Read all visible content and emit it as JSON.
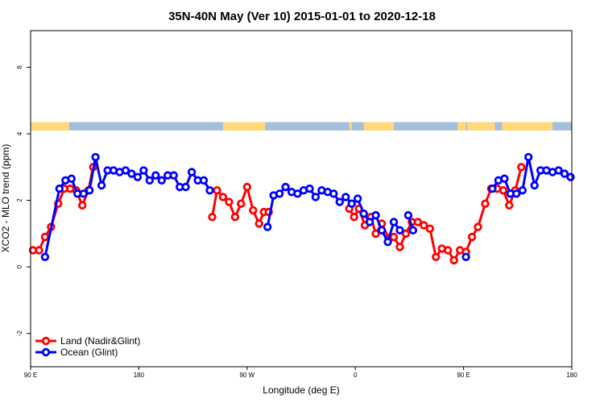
{
  "chart_data": {
    "type": "line",
    "title": "35N-40N May (Ver 10)   2015-01-01 to 2020-12-18",
    "xlabel": "Longitude (deg E)",
    "ylabel": "XCO2 - MLO trend (ppm)",
    "xlim": [
      90,
      540
    ],
    "ylim": [
      -3.0,
      7.1
    ],
    "x_ticks": [
      {
        "value": 90,
        "label": "90 E"
      },
      {
        "value": 180,
        "label": "180"
      },
      {
        "value": 270,
        "label": "90 W"
      },
      {
        "value": 360,
        "label": "0"
      },
      {
        "value": 450,
        "label": "90 E"
      },
      {
        "value": 540,
        "label": "180"
      }
    ],
    "y_ticks": [
      {
        "value": -2,
        "label": "-2"
      },
      {
        "value": 0,
        "label": "0"
      },
      {
        "value": 2,
        "label": "2"
      },
      {
        "value": 4,
        "label": "4"
      },
      {
        "value": 6,
        "label": "6"
      }
    ],
    "land_ocean_strip": {
      "y_range": [
        4.1,
        4.35
      ],
      "land_color": "#FFD97A",
      "ocean_color": "#A5BEDC",
      "land_segments": [
        [
          90,
          122
        ],
        [
          250,
          285
        ],
        [
          355,
          357
        ],
        [
          367,
          392
        ],
        [
          445,
          452
        ],
        [
          453,
          476
        ],
        [
          482,
          524
        ]
      ]
    },
    "series": [
      {
        "name": "Land (Nadir&Glint)",
        "color": "#FF0000",
        "segments": [
          [
            [
              92,
              0.5
            ],
            [
              97,
              0.5
            ],
            [
              102,
              0.9
            ],
            [
              107,
              1.2
            ],
            [
              113,
              1.9
            ],
            [
              118,
              2.35
            ],
            [
              123,
              2.35
            ],
            [
              128,
              2.3
            ],
            [
              133,
              1.85
            ],
            [
              138,
              2.3
            ],
            [
              142,
              3.0
            ]
          ],
          [
            [
              241,
              1.5
            ],
            [
              245,
              2.3
            ],
            [
              250,
              2.1
            ],
            [
              255,
              1.95
            ],
            [
              260,
              1.5
            ],
            [
              265,
              1.9
            ],
            [
              270,
              2.4
            ],
            [
              275,
              1.7
            ],
            [
              280,
              1.3
            ],
            [
              284,
              1.65
            ],
            [
              288,
              1.65
            ]
          ],
          [
            [
              355,
              1.75
            ],
            [
              359,
              1.5
            ],
            [
              363,
              1.75
            ],
            [
              368,
              1.25
            ],
            [
              373,
              1.5
            ],
            [
              377,
              1.0
            ],
            [
              382,
              1.3
            ],
            [
              388,
              0.85
            ],
            [
              392,
              0.9
            ],
            [
              397,
              0.6
            ],
            [
              402,
              1.0
            ],
            [
              407,
              1.35
            ],
            [
              412,
              1.35
            ],
            [
              417,
              1.25
            ],
            [
              422,
              1.15
            ],
            [
              427,
              0.3
            ],
            [
              432,
              0.55
            ],
            [
              437,
              0.5
            ],
            [
              442,
              0.2
            ],
            [
              447,
              0.5
            ],
            [
              452,
              0.45
            ],
            [
              457,
              0.9
            ],
            [
              462,
              1.2
            ],
            [
              468,
              1.9
            ],
            [
              473,
              2.35
            ],
            [
              478,
              2.35
            ],
            [
              483,
              2.3
            ],
            [
              488,
              1.85
            ],
            [
              493,
              2.3
            ],
            [
              498,
              3.0
            ]
          ]
        ]
      },
      {
        "name": "Ocean (Glint)",
        "color": "#0000FF",
        "segments": [
          [
            [
              102,
              0.3
            ],
            [
              114,
              2.35
            ],
            [
              119,
              2.6
            ],
            [
              124,
              2.65
            ],
            [
              129,
              2.2
            ],
            [
              134,
              2.2
            ],
            [
              139,
              2.3
            ],
            [
              144,
              3.3
            ],
            [
              149,
              2.45
            ],
            [
              154,
              2.9
            ],
            [
              159,
              2.9
            ],
            [
              164,
              2.85
            ],
            [
              169,
              2.9
            ],
            [
              174,
              2.8
            ],
            [
              179,
              2.7
            ],
            [
              184,
              2.9
            ],
            [
              189,
              2.6
            ],
            [
              194,
              2.75
            ],
            [
              199,
              2.6
            ],
            [
              204,
              2.75
            ],
            [
              209,
              2.75
            ],
            [
              214,
              2.4
            ],
            [
              219,
              2.4
            ],
            [
              224,
              2.85
            ],
            [
              229,
              2.6
            ],
            [
              234,
              2.6
            ],
            [
              239,
              2.3
            ]
          ],
          [
            [
              287,
              1.2
            ],
            [
              292,
              2.15
            ],
            [
              297,
              2.2
            ],
            [
              302,
              2.4
            ],
            [
              307,
              2.25
            ],
            [
              312,
              2.2
            ],
            [
              317,
              2.3
            ],
            [
              322,
              2.35
            ],
            [
              327,
              2.1
            ],
            [
              332,
              2.3
            ],
            [
              337,
              2.25
            ],
            [
              342,
              2.2
            ],
            [
              347,
              1.95
            ],
            [
              352,
              2.1
            ],
            [
              357,
              1.9
            ],
            [
              362,
              2.05
            ],
            [
              367,
              1.6
            ],
            [
              372,
              1.35
            ],
            [
              377,
              1.55
            ],
            [
              382,
              1.1
            ],
            [
              387,
              0.75
            ],
            [
              392,
              1.35
            ],
            [
              397,
              1.1
            ]
          ],
          [
            [
              404,
              1.55
            ],
            [
              408,
              1.1
            ]
          ],
          [
            [
              452,
              0.3
            ]
          ],
          [
            [
              474,
              2.35
            ],
            [
              479,
              2.6
            ],
            [
              484,
              2.65
            ],
            [
              489,
              2.2
            ],
            [
              494,
              2.2
            ],
            [
              499,
              2.3
            ],
            [
              504,
              3.3
            ],
            [
              509,
              2.45
            ],
            [
              514,
              2.9
            ],
            [
              519,
              2.9
            ],
            [
              524,
              2.85
            ],
            [
              529,
              2.9
            ],
            [
              534,
              2.8
            ],
            [
              539,
              2.7
            ]
          ]
        ]
      }
    ],
    "legend": {
      "position": "bottom-left",
      "entries": [
        {
          "label": "Land (Nadir&Glint)",
          "color": "#FF0000"
        },
        {
          "label": "Ocean (Glint)",
          "color": "#0000FF"
        }
      ]
    },
    "grid": false
  }
}
